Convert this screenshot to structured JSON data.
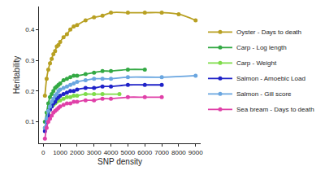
{
  "chart_data": {
    "type": "line",
    "x_label": "SNP density",
    "y_label": "Heritability",
    "xlim": [
      -250,
      9300
    ],
    "ylim": [
      0.03,
      0.475
    ],
    "xticks": [
      0,
      1000,
      2000,
      3000,
      4000,
      5000,
      6000,
      7000,
      8000,
      9000
    ],
    "yticks": [
      0.1,
      0.2,
      0.3,
      0.4
    ],
    "grid": false,
    "legend": "right",
    "marker": "circle",
    "line_style": "solid",
    "series": [
      {
        "name": "Oyster - Days to death",
        "color": "#b8a022",
        "x": [
          100,
          200,
          300,
          400,
          500,
          600,
          700,
          800,
          900,
          1000,
          1200,
          1400,
          1600,
          1800,
          2000,
          2500,
          3000,
          3500,
          4000,
          5000,
          6000,
          7000,
          8000,
          9000
        ],
        "values": [
          0.185,
          0.24,
          0.27,
          0.29,
          0.305,
          0.32,
          0.33,
          0.345,
          0.35,
          0.36,
          0.375,
          0.385,
          0.4,
          0.41,
          0.415,
          0.43,
          0.44,
          0.445,
          0.455,
          0.455,
          0.455,
          0.455,
          0.45,
          0.43
        ]
      },
      {
        "name": "Carp - Log length",
        "color": "#33a944",
        "x": [
          100,
          200,
          300,
          400,
          500,
          600,
          700,
          800,
          900,
          1000,
          1200,
          1400,
          1600,
          1800,
          2000,
          2500,
          3000,
          3500,
          4000,
          5000,
          6000
        ],
        "values": [
          0.1,
          0.13,
          0.16,
          0.18,
          0.19,
          0.2,
          0.21,
          0.215,
          0.22,
          0.225,
          0.235,
          0.24,
          0.245,
          0.25,
          0.25,
          0.255,
          0.26,
          0.265,
          0.265,
          0.27,
          0.27
        ]
      },
      {
        "name": "Carp - Weight",
        "color": "#7fdc4a",
        "x": [
          100,
          200,
          300,
          400,
          500,
          600,
          700,
          800,
          900,
          1000,
          1200,
          1400,
          1600,
          1800,
          2000,
          2500,
          3000,
          3500,
          4500
        ],
        "values": [
          0.08,
          0.11,
          0.13,
          0.14,
          0.15,
          0.155,
          0.16,
          0.165,
          0.17,
          0.17,
          0.175,
          0.18,
          0.18,
          0.185,
          0.185,
          0.19,
          0.19,
          0.19,
          0.19
        ]
      },
      {
        "name": "Salmon - Amoebic Load",
        "color": "#1f22c8",
        "x": [
          100,
          200,
          300,
          400,
          500,
          600,
          700,
          800,
          900,
          1000,
          1200,
          1400,
          1600,
          1800,
          2000,
          2500,
          3000,
          3500,
          4000,
          5000,
          6000,
          7000
        ],
        "values": [
          0.07,
          0.1,
          0.12,
          0.14,
          0.15,
          0.16,
          0.165,
          0.175,
          0.18,
          0.185,
          0.19,
          0.195,
          0.2,
          0.2,
          0.205,
          0.21,
          0.21,
          0.215,
          0.215,
          0.22,
          0.22,
          0.22
        ]
      },
      {
        "name": "Salmon - Gill score",
        "color": "#6aa6e0",
        "x": [
          100,
          200,
          300,
          400,
          500,
          600,
          700,
          800,
          900,
          1000,
          1200,
          1400,
          1600,
          1800,
          2000,
          2500,
          3000,
          3500,
          4000,
          5000,
          7000,
          9000
        ],
        "values": [
          0.08,
          0.11,
          0.135,
          0.15,
          0.165,
          0.175,
          0.185,
          0.19,
          0.2,
          0.205,
          0.21,
          0.215,
          0.22,
          0.225,
          0.23,
          0.235,
          0.24,
          0.24,
          0.24,
          0.245,
          0.245,
          0.25
        ]
      },
      {
        "name": "Sea bream - Days to death",
        "color": "#e040a8",
        "x": [
          100,
          200,
          300,
          400,
          500,
          600,
          700,
          800,
          900,
          1000,
          1200,
          1400,
          1600,
          1800,
          2000,
          2500,
          3000,
          3500,
          4000,
          5000,
          6000,
          7000
        ],
        "values": [
          0.045,
          0.08,
          0.1,
          0.11,
          0.12,
          0.13,
          0.135,
          0.14,
          0.145,
          0.15,
          0.155,
          0.16,
          0.16,
          0.165,
          0.165,
          0.17,
          0.17,
          0.175,
          0.175,
          0.18,
          0.18,
          0.18
        ]
      }
    ]
  }
}
